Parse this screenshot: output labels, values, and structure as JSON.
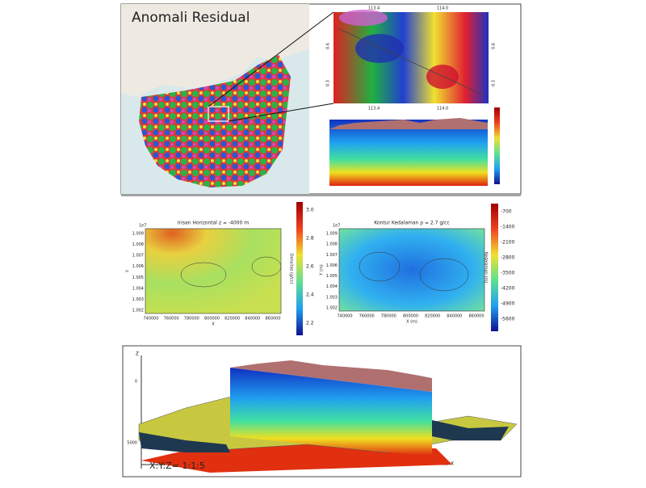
{
  "top": {
    "map_title": "Anomali Residual",
    "zoom_x_labels": [
      "113.4",
      "114.0"
    ],
    "zoom_y_labels": [
      "0.6",
      "0.3"
    ],
    "section_x_labels": [
      "113.4",
      "114.0"
    ]
  },
  "horizontal": {
    "title": "Irisan Horizontal z = -4000 m",
    "exponent": "1e7",
    "yticks": [
      "1.009",
      "1.008",
      "1.007",
      "1.006",
      "1.005",
      "1.004",
      "1.003",
      "1.002"
    ],
    "xticks": [
      "740000",
      "760000",
      "780000",
      "800000",
      "820000",
      "840000",
      "860000"
    ],
    "xlabel": "X",
    "ylabel": "Y",
    "colorbar_label": "Densitas (g/cc)",
    "colorbar_ticks": [
      "3.0",
      "2.8",
      "2.6",
      "2.4",
      "2.2"
    ]
  },
  "depth": {
    "title": "Kontur Kedalaman ρ = 2.7 g/cc",
    "exponent": "1e7",
    "yticks": [
      "1.009",
      "1.008",
      "1.007",
      "1.006",
      "1.005",
      "1.004",
      "1.003",
      "1.002"
    ],
    "xticks": [
      "740000",
      "760000",
      "780000",
      "800000",
      "820000",
      "840000",
      "860000"
    ],
    "xlabel": "X (m)",
    "ylabel": "Y (m)",
    "colorbar_label": "Kedalaman (m)",
    "colorbar_ticks": [
      "-700",
      "-1400",
      "-2100",
      "-2800",
      "-3500",
      "-4200",
      "-4900",
      "-5600"
    ]
  },
  "model3d": {
    "z_axis": "Z",
    "x_axis": "X",
    "z_ticks": [
      "0",
      "5000"
    ],
    "scale": "X:Y:Z= 1:1:5"
  }
}
